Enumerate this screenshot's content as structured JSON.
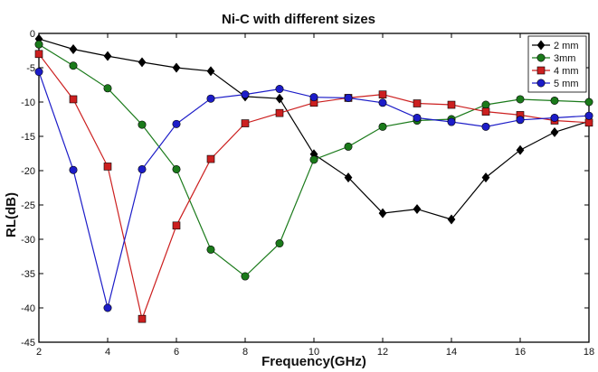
{
  "chart_data": {
    "type": "line",
    "title": "Ni-C with different sizes",
    "xlabel": "Frequency(GHz)",
    "ylabel": "RL(dB)",
    "xlim": [
      2,
      18
    ],
    "ylim": [
      -45,
      0
    ],
    "x_ticks": [
      "2",
      "4",
      "6",
      "8",
      "10",
      "12",
      "14",
      "16",
      "18"
    ],
    "y_ticks": [
      "0",
      "-5",
      "-10",
      "-15",
      "-20",
      "-25",
      "-30",
      "-35",
      "-40",
      "-45"
    ],
    "grid": false,
    "legend_position": "top-right",
    "x": [
      2,
      3,
      4,
      5,
      6,
      7,
      8,
      9,
      10,
      11,
      12,
      13,
      14,
      15,
      16,
      17,
      18
    ],
    "series": [
      {
        "name": "2 mm",
        "color": "#000000",
        "marker": "diamond",
        "values": [
          -0.8,
          -2.3,
          -3.3,
          -4.2,
          -5,
          -5.5,
          -9.2,
          -9.5,
          -17.6,
          -21,
          -26.2,
          -25.6,
          -27.1,
          -21,
          -17,
          -14.4,
          -12.8
        ]
      },
      {
        "name": "3mm",
        "color": "#1a7a1a",
        "marker": "circle",
        "values": [
          -1.6,
          -4.7,
          -8,
          -13.3,
          -19.8,
          -31.5,
          -35.4,
          -30.6,
          -18.4,
          -16.5,
          -13.6,
          -12.7,
          -12.5,
          -10.4,
          -9.6,
          -9.8,
          -10
        ]
      },
      {
        "name": "4 mm",
        "color": "#cc1f1f",
        "marker": "square",
        "values": [
          -3,
          -9.6,
          -19.4,
          -41.6,
          -28,
          -18.3,
          -13.1,
          -11.6,
          -10.1,
          -9.4,
          -8.9,
          -10.2,
          -10.4,
          -11.4,
          -11.9,
          -12.7,
          -13
        ]
      },
      {
        "name": "5 mm",
        "color": "#1c1cc8",
        "marker": "circle",
        "values": [
          -5.6,
          -19.9,
          -40,
          -19.8,
          -13.2,
          -9.5,
          -8.9,
          -8.1,
          -9.3,
          -9.4,
          -10.1,
          -12.3,
          -12.9,
          -13.6,
          -12.6,
          -12.3,
          -12
        ]
      }
    ]
  }
}
